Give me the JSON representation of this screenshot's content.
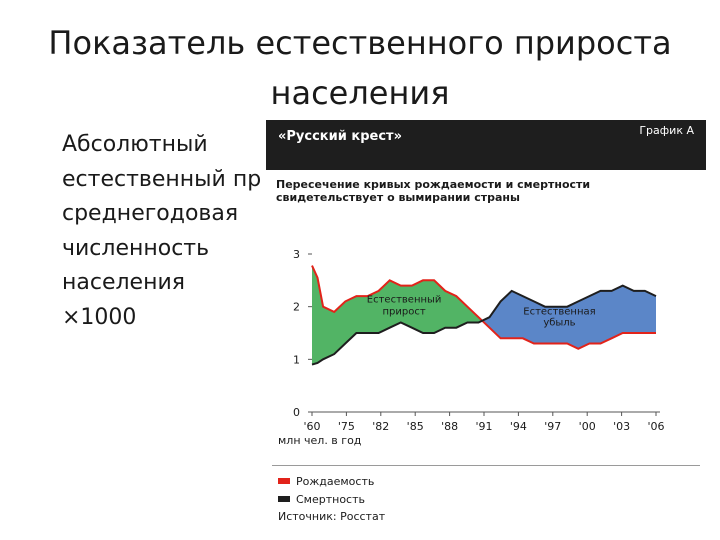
{
  "slide": {
    "title_line1": "Показатель естественного прироста",
    "title_line2": "населения",
    "bullets": [
      "Абсолютный",
      "естественный пр",
      "среднегодовая",
      "численность",
      "населения",
      "×1000"
    ]
  },
  "figure": {
    "header_title": "«Русский крест»",
    "header_label": "График А",
    "subtitle_line1": "Пересечение кривых рождаемости и смертности",
    "subtitle_line2": "свидетельствует о вымирании страны",
    "unit_label": "млн чел. в год",
    "area_label_growth_1": "Естественный",
    "area_label_growth_2": "прирост",
    "area_label_loss_1": "Естественная",
    "area_label_loss_2": "убыль",
    "legend": [
      {
        "label": "Рождаемость",
        "color": "#e2231a"
      },
      {
        "label": "Смертность",
        "color": "#1e1e1e"
      }
    ],
    "source": "Источник: Росстат"
  },
  "chart_data": {
    "type": "area",
    "title": "«Русский крест»",
    "ylabel": "млн чел. в год",
    "xlim": [
      1960,
      2006
    ],
    "ylim": [
      0,
      3
    ],
    "yticks": [
      0,
      1,
      2,
      3
    ],
    "x_tick_labels": [
      "'60",
      "'75",
      "'82",
      "'85",
      "'88",
      "'91",
      "'94",
      "'97",
      "'00",
      "'03",
      "'06"
    ],
    "colors": {
      "birth": "#e2231a",
      "death": "#1e1e1e",
      "growth_fill": "#52b465",
      "loss_fill": "#5b86c8"
    },
    "series": [
      {
        "name": "Рождаемость",
        "x": [
          0,
          0.5,
          1,
          2,
          3,
          4,
          5,
          6,
          7,
          8,
          9,
          10,
          11,
          12,
          13,
          14,
          15,
          16,
          17,
          18,
          19,
          20,
          21,
          22,
          23
        ],
        "values": [
          2.78,
          2.55,
          2.0,
          1.9,
          2.1,
          2.2,
          2.2,
          2.3,
          2.5,
          2.4,
          2.4,
          2.5,
          2.5,
          2.3,
          2.2,
          2.0,
          1.8,
          1.6,
          1.4,
          1.4,
          1.4,
          1.3,
          1.3,
          1.3,
          1.3
        ]
      },
      {
        "name": "Смертность",
        "x": [
          0,
          0.5,
          1,
          2,
          3,
          4,
          5,
          6,
          7,
          8,
          9,
          10,
          11,
          12,
          13,
          14,
          15,
          16,
          17,
          18,
          19,
          20,
          21,
          22,
          23
        ],
        "values": [
          0.9,
          0.93,
          1.0,
          1.1,
          1.3,
          1.5,
          1.5,
          1.5,
          1.6,
          1.7,
          1.6,
          1.5,
          1.5,
          1.6,
          1.6,
          1.7,
          1.7,
          1.8,
          2.1,
          2.3,
          2.2,
          2.1,
          2.0,
          2.0,
          2.0
        ]
      }
    ],
    "index_to_year_note": "",
    "series_tail": {
      "birth_x": [
        24,
        25,
        26,
        27,
        28,
        29,
        30,
        31
      ],
      "birth_values": [
        1.2,
        1.3,
        1.3,
        1.4,
        1.5,
        1.5,
        1.5,
        1.5
      ],
      "death_x": [
        24,
        25,
        26,
        27,
        28,
        29,
        30,
        31
      ],
      "death_values": [
        2.1,
        2.2,
        2.3,
        2.3,
        2.4,
        2.3,
        2.3,
        2.2
      ]
    }
  }
}
